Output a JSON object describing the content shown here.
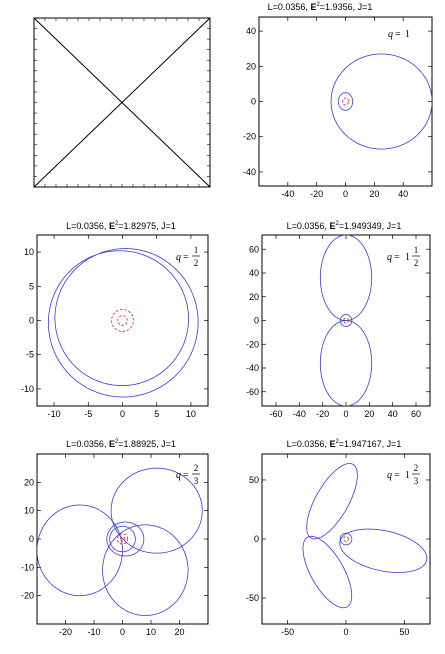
{
  "chart_data": [
    {
      "panel": "penrose",
      "type": "diagram",
      "title": "",
      "description_marks": [
        "square-boundary",
        "diagonal-up",
        "diagonal-down"
      ]
    },
    {
      "panel": "q1",
      "type": "line",
      "title": "L=0.0356, E²=1.9356, J=1",
      "title_parts": [
        "L=0.0356, ",
        "E",
        "2",
        "=1.9356, J=1"
      ],
      "q_label": {
        "whole": "1",
        "num": "",
        "den": ""
      },
      "xlim": [
        -60,
        60
      ],
      "ylim": [
        -48,
        48
      ],
      "xticks": [
        -40,
        -20,
        0,
        20,
        40
      ],
      "yticks": [
        -40,
        -20,
        0,
        20,
        40
      ],
      "series": [
        {
          "role": "orbit",
          "color": "#3b3bd6",
          "curve": "ellipse",
          "cx": 25,
          "cy": 0,
          "rx": 35,
          "ry": 27,
          "turns": 1
        },
        {
          "role": "orbit",
          "color": "#3b3bd6",
          "curve": "ellipse",
          "cx": 0,
          "cy": 0,
          "rx": 5,
          "ry": 5,
          "turns": 1
        },
        {
          "role": "horizon",
          "color": "#e03030",
          "dashed": true,
          "curve": "circle",
          "cx": 0,
          "cy": 0,
          "r": 2
        }
      ]
    },
    {
      "panel": "q1half_left",
      "type": "line",
      "title": "L=0.0356, E²=1.82975, J=1",
      "title_parts": [
        "L=0.0356, ",
        "E",
        "2",
        "=1.82975, J=1"
      ],
      "q_label": {
        "whole": "",
        "num": "1",
        "den": "2"
      },
      "xlim": [
        -12.5,
        12.5
      ],
      "ylim": [
        -12.5,
        12.5
      ],
      "xticks": [
        -10,
        -5,
        0,
        5,
        10
      ],
      "yticks": [
        -10,
        -5,
        0,
        5,
        10
      ],
      "series": [
        {
          "role": "orbit",
          "color": "#3b3bd6",
          "curve": "rosette",
          "r_min": 9.5,
          "r_max": 11.2,
          "petals": 1,
          "turns": 2,
          "phase": 0.6
        },
        {
          "role": "horizon",
          "color": "#e03030",
          "dashed": true,
          "curve": "circle",
          "cx": 0,
          "cy": 0,
          "r": 1.6
        },
        {
          "role": "horizon",
          "color": "#e03030",
          "dashed": true,
          "curve": "circle",
          "cx": 0,
          "cy": 0,
          "r": 0.7
        }
      ]
    },
    {
      "panel": "q1half_right",
      "type": "line",
      "title": "L=0.0356, E²=1.949349, J=1",
      "title_parts": [
        "L=0.0356, ",
        "E",
        "2",
        "=1.949349, J=1"
      ],
      "q_label": {
        "whole": "1",
        "num": "1",
        "den": "2"
      },
      "xlim": [
        -72,
        72
      ],
      "ylim": [
        -72,
        72
      ],
      "xticks": [
        -60,
        -40,
        -20,
        0,
        20,
        40,
        60
      ],
      "yticks": [
        -60,
        -40,
        -20,
        0,
        20,
        40,
        60
      ],
      "series": [
        {
          "role": "orbit",
          "color": "#3b3bd6",
          "curve": "ellipse",
          "cx": 0,
          "cy": 36,
          "rx": 22,
          "ry": 36,
          "turns": 1
        },
        {
          "role": "orbit",
          "color": "#3b3bd6",
          "curve": "ellipse",
          "cx": 0,
          "cy": -36,
          "rx": 22,
          "ry": 36,
          "turns": 1
        },
        {
          "role": "orbit",
          "color": "#3b3bd6",
          "curve": "ellipse",
          "cx": 0,
          "cy": 0,
          "rx": 5,
          "ry": 5,
          "turns": 1
        },
        {
          "role": "horizon",
          "color": "#e03030",
          "dashed": true,
          "curve": "circle",
          "cx": 0,
          "cy": 0,
          "r": 2
        }
      ]
    },
    {
      "panel": "q2third_left",
      "type": "line",
      "title": "L=0.0356, E²=1.88925, J=1",
      "title_parts": [
        "L=0.0356, ",
        "E",
        "2",
        "=1.88925, J=1"
      ],
      "q_label": {
        "whole": "",
        "num": "2",
        "den": "3"
      },
      "xlim": [
        -30,
        30
      ],
      "ylim": [
        -30,
        30
      ],
      "xticks": [
        -20,
        -10,
        0,
        10,
        20
      ],
      "yticks": [
        -20,
        -10,
        0,
        10,
        20
      ],
      "series": [
        {
          "role": "orbit",
          "color": "#3b3bd6",
          "curve": "ellipse",
          "cx": 12,
          "cy": 10,
          "rx": 16,
          "ry": 15,
          "turns": 1
        },
        {
          "role": "orbit",
          "color": "#3b3bd6",
          "curve": "ellipse",
          "cx": -15,
          "cy": -4,
          "rx": 15,
          "ry": 16,
          "turns": 1
        },
        {
          "role": "orbit",
          "color": "#3b3bd6",
          "curve": "ellipse",
          "cx": 8,
          "cy": -11,
          "rx": 15,
          "ry": 16,
          "turns": 1
        },
        {
          "role": "orbit",
          "color": "#3b3bd6",
          "curve": "ellipse",
          "cx": 1,
          "cy": 0,
          "rx": 6.5,
          "ry": 6,
          "turns": 1
        },
        {
          "role": "orbit",
          "color": "#3b3bd6",
          "curve": "ellipse",
          "cx": 0,
          "cy": 0,
          "rx": 4.5,
          "ry": 4.5,
          "turns": 1
        },
        {
          "role": "horizon",
          "color": "#e03030",
          "dashed": true,
          "curve": "circle",
          "cx": 0,
          "cy": 0,
          "r": 1.8
        },
        {
          "role": "horizon",
          "color": "#e03030",
          "dashed": true,
          "curve": "circle",
          "cx": 0,
          "cy": 0,
          "r": 0.8
        }
      ]
    },
    {
      "panel": "q2third_right",
      "type": "line",
      "title": "L=0.0356, E²=1.947167, J=1",
      "title_parts": [
        "L=0.0356, ",
        "E",
        "2",
        "=1.947167, J=1"
      ],
      "q_label": {
        "whole": "1",
        "num": "2",
        "den": "3"
      },
      "xlim": [
        -72,
        72
      ],
      "ylim": [
        -72,
        72
      ],
      "xticks": [
        -50,
        0,
        50
      ],
      "yticks": [
        -50,
        0,
        50
      ],
      "series": [
        {
          "role": "orbit",
          "color": "#3b3bd6",
          "curve": "ellipse",
          "cx": -12,
          "cy": 32,
          "rx": 14,
          "ry": 36,
          "rot": -30,
          "turns": 1
        },
        {
          "role": "orbit",
          "color": "#3b3bd6",
          "curve": "ellipse",
          "cx": 32,
          "cy": -10,
          "rx": 38,
          "ry": 17,
          "rot": -12,
          "turns": 1
        },
        {
          "role": "orbit",
          "color": "#3b3bd6",
          "curve": "ellipse",
          "cx": -16,
          "cy": -28,
          "rx": 14,
          "ry": 34,
          "rot": 30,
          "turns": 1
        },
        {
          "role": "orbit",
          "color": "#3b3bd6",
          "curve": "ellipse",
          "cx": 0,
          "cy": 0,
          "rx": 5,
          "ry": 5,
          "turns": 1
        },
        {
          "role": "horizon",
          "color": "#e03030",
          "dashed": true,
          "curve": "circle",
          "cx": 0,
          "cy": 0,
          "r": 2
        }
      ]
    }
  ]
}
